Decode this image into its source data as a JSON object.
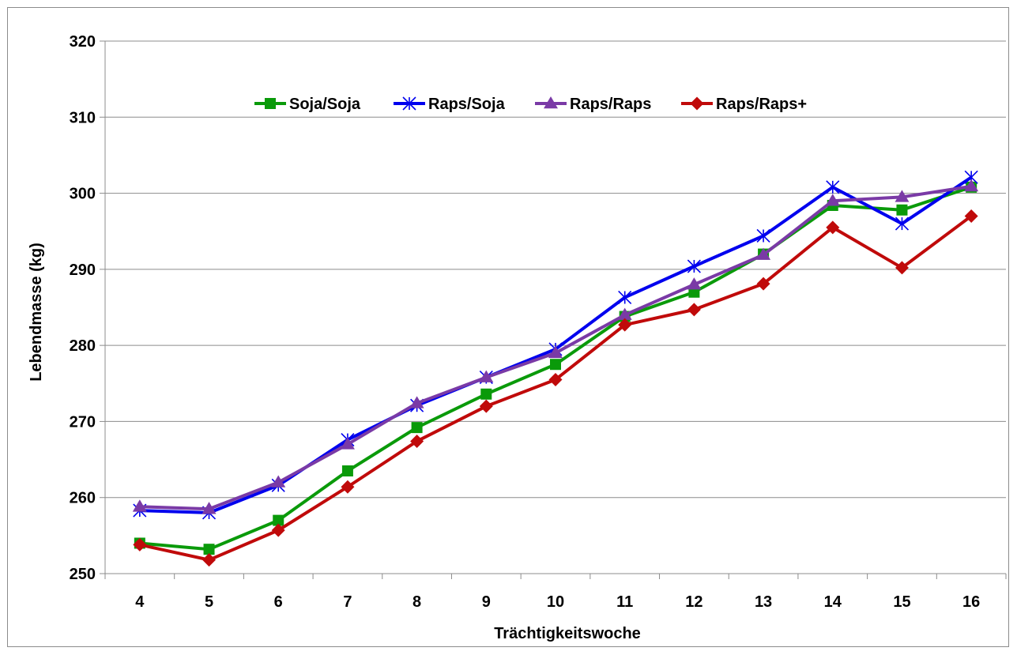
{
  "chart_data": {
    "type": "line",
    "title": "",
    "xlabel": "Trächtigkeitswoche",
    "ylabel": "Lebendmasse (kg)",
    "categories": [
      "4",
      "5",
      "6",
      "7",
      "8",
      "9",
      "10",
      "11",
      "12",
      "13",
      "14",
      "15",
      "16"
    ],
    "ylim": [
      250,
      320
    ],
    "yticks": [
      250,
      260,
      270,
      280,
      290,
      300,
      310,
      320
    ],
    "grid": "horizontal",
    "legend_position": "top-center",
    "series": [
      {
        "name": "Soja/Soja",
        "color": "#0a9a0a",
        "marker": "square",
        "values": [
          254.0,
          253.2,
          257.0,
          263.5,
          269.2,
          273.6,
          277.5,
          283.8,
          287.0,
          292.0,
          298.4,
          297.8,
          300.8
        ]
      },
      {
        "name": "Raps/Soja",
        "color": "#0000ee",
        "marker": "asterisk",
        "values": [
          258.3,
          258.0,
          261.6,
          267.6,
          272.1,
          275.8,
          279.5,
          286.3,
          290.4,
          294.4,
          300.8,
          296.0,
          302.1
        ]
      },
      {
        "name": "Raps/Raps",
        "color": "#7a3aa6",
        "marker": "triangle",
        "values": [
          258.8,
          258.5,
          262.0,
          267.0,
          272.4,
          275.8,
          279.0,
          284.0,
          288.0,
          291.9,
          299.0,
          299.5,
          300.9
        ]
      },
      {
        "name": "Raps/Raps+",
        "color": "#c00a0a",
        "marker": "diamond",
        "values": [
          253.8,
          251.8,
          255.7,
          261.4,
          267.4,
          272.0,
          275.5,
          282.7,
          284.7,
          288.1,
          295.5,
          290.2,
          297.0
        ]
      }
    ]
  }
}
